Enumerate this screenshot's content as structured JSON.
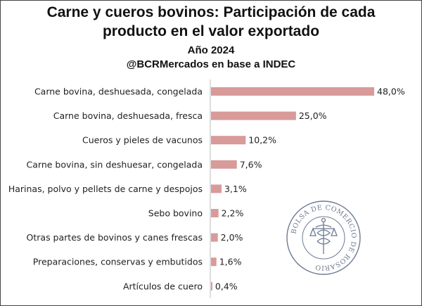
{
  "title_line1": "Carne y cueros bovinos: Participación de cada",
  "title_line2": "producto en el valor exportado",
  "subtitle": "Año 2024",
  "source": "@BCRMercados en base a INDEC",
  "seal_text": "BOLSA DE COMERCIO DE ROSARIO",
  "colors": {
    "bar": "#d99a9a",
    "axis": "#bbbbbb",
    "seal": "#6d7a92"
  },
  "chart_data": {
    "type": "bar",
    "orientation": "horizontal",
    "title": "Carne y cueros bovinos: Participación de cada producto en el valor exportado",
    "subtitle": "Año 2024",
    "xlabel": "",
    "ylabel": "",
    "xlim": [
      0,
      48
    ],
    "grid": false,
    "categories": [
      "Carne bovina, deshuesada, congelada",
      "Carne bovina, deshuesada, fresca",
      "Cueros y pieles de vacunos",
      "Carne bovina, sin deshuesar, congelada",
      "Harinas, polvo y pellets de carne y despojos",
      "Sebo bovino",
      "Otras partes de bovinos y canes frescas",
      "Preparaciones, conservas y embutidos",
      "Artículos de cuero"
    ],
    "values": [
      48.0,
      25.0,
      10.2,
      7.6,
      3.1,
      2.2,
      2.0,
      1.6,
      0.4
    ],
    "value_labels": [
      "48,0%",
      "25,0%",
      "10,2%",
      "7,6%",
      "3,1%",
      "2,2%",
      "2,0%",
      "1,6%",
      "0,4%"
    ]
  }
}
